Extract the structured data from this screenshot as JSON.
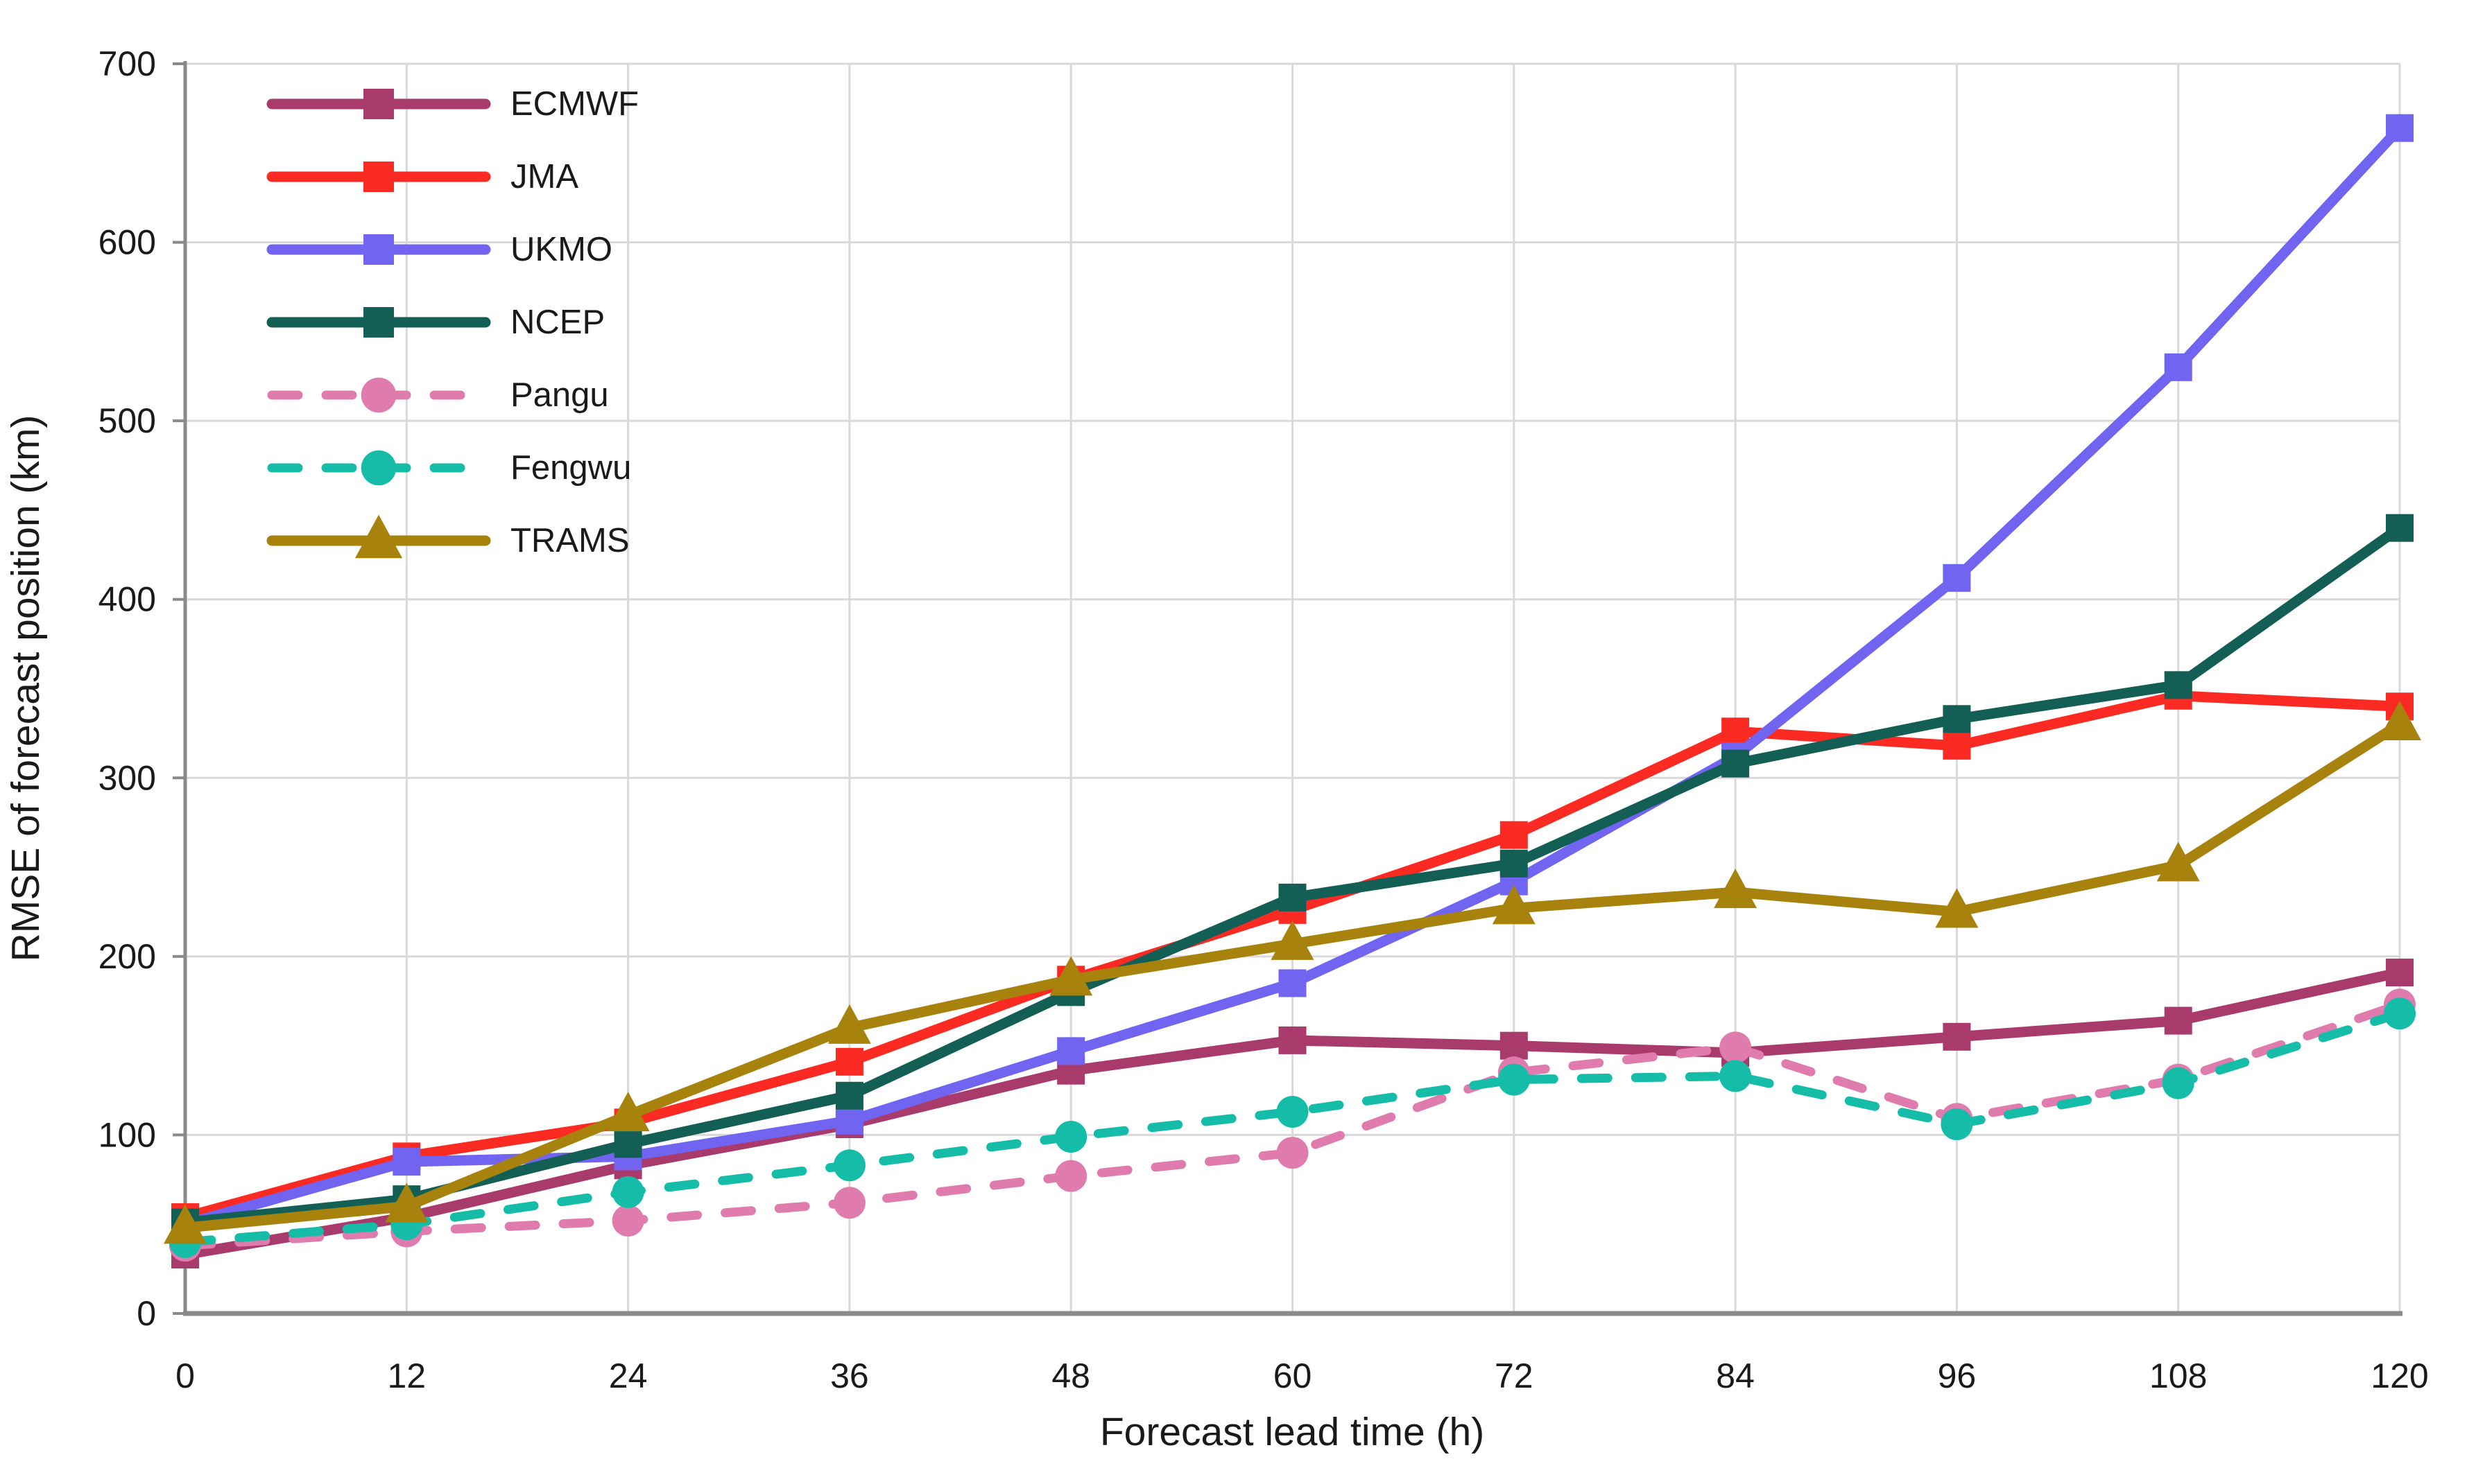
{
  "figure": {
    "background_color": "#ffffff",
    "grid_color": "#d9d9d9",
    "axis_color": "#8a8a8a",
    "text_color": "#1a1a1a"
  },
  "chart_data": {
    "type": "line",
    "title": "",
    "xlabel": "Forecast lead time (h)",
    "ylabel": "RMSE of forecast position (km)",
    "x": [
      0,
      12,
      24,
      36,
      48,
      60,
      72,
      84,
      96,
      108,
      120
    ],
    "y_ticks": [
      0,
      100,
      200,
      300,
      400,
      500,
      600,
      700
    ],
    "xlim": [
      0,
      120
    ],
    "ylim": [
      0,
      700
    ],
    "grid": true,
    "legend_position": "upper-left-inside",
    "series": [
      {
        "name": "ECMWF",
        "color": "#a93a6c",
        "marker": "square",
        "line_style": "solid",
        "values": [
          33,
          54,
          83,
          106,
          136,
          153,
          150,
          146,
          155,
          164,
          191
        ]
      },
      {
        "name": "JMA",
        "color": "#fb2a23",
        "marker": "square",
        "line_style": "solid",
        "values": [
          54,
          88,
          107,
          141,
          187,
          226,
          268,
          326,
          318,
          346,
          340
        ]
      },
      {
        "name": "UKMO",
        "color": "#7164f0",
        "marker": "square",
        "line_style": "solid",
        "values": [
          50,
          85,
          88,
          108,
          147,
          185,
          242,
          312,
          412,
          530,
          664
        ]
      },
      {
        "name": "NCEP",
        "color": "#145f55",
        "marker": "square",
        "line_style": "solid",
        "values": [
          51,
          64,
          95,
          122,
          180,
          233,
          252,
          308,
          333,
          352,
          440
        ]
      },
      {
        "name": "Pangu",
        "color": "#e07cad",
        "marker": "circle",
        "line_style": "dashed",
        "values": [
          38,
          46,
          52,
          62,
          77,
          90,
          135,
          149,
          109,
          131,
          173
        ]
      },
      {
        "name": "Fengwu",
        "color": "#15bca8",
        "marker": "circle",
        "line_style": "dashed",
        "values": [
          40,
          50,
          68,
          83,
          99,
          113,
          131,
          133,
          106,
          129,
          168
        ]
      },
      {
        "name": "TRAMS",
        "color": "#a7820c",
        "marker": "triangle",
        "line_style": "solid",
        "values": [
          48,
          60,
          111,
          160,
          187,
          207,
          227,
          236,
          225,
          251,
          330
        ]
      }
    ]
  }
}
